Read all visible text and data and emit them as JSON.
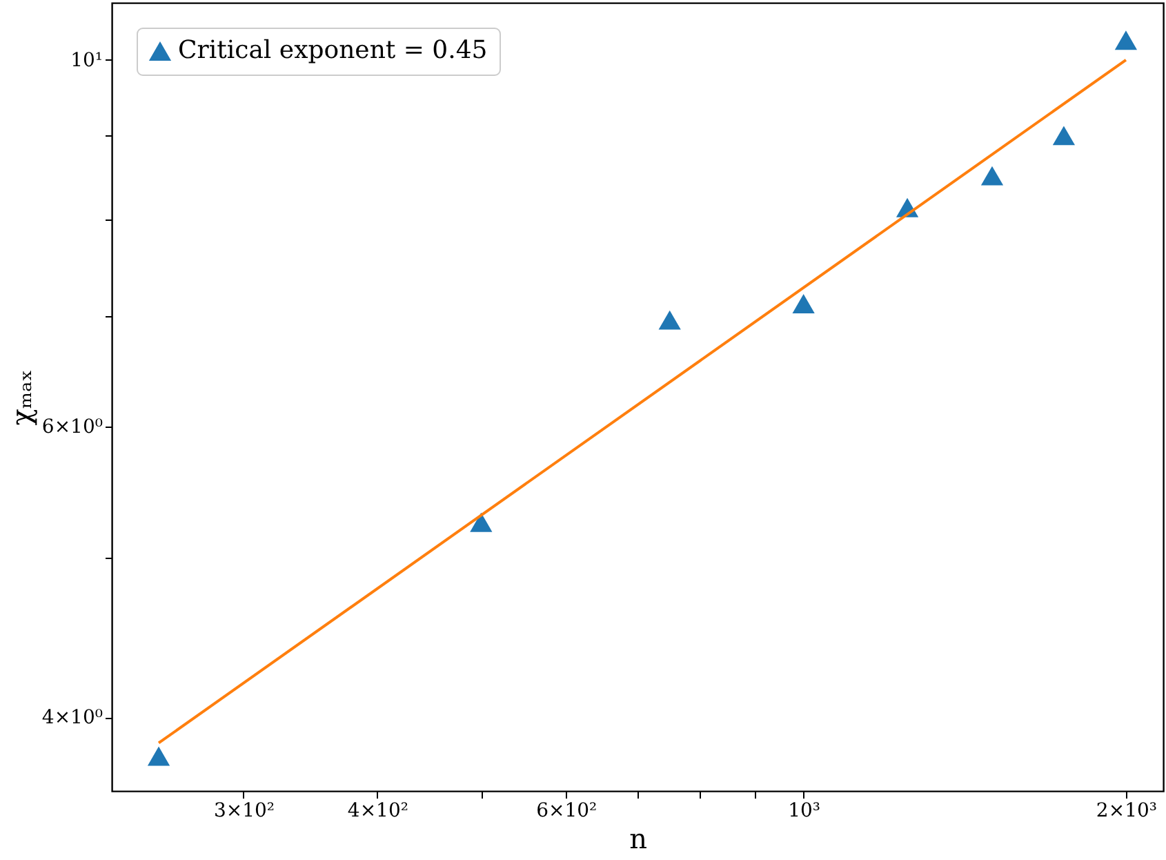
{
  "chart_data": {
    "type": "scatter",
    "xlabel": "n",
    "ylabel": "χₘₐₓ",
    "log": "xy",
    "grid": false,
    "legend": "top left",
    "xlim": [
      226,
      2167
    ],
    "ylim": [
      3.61,
      10.83
    ],
    "xticks": [
      {
        "value": 300,
        "label": "3×10²"
      },
      {
        "value": 400,
        "label": "4×10²"
      },
      {
        "value": 500,
        "label": null
      },
      {
        "value": 600,
        "label": "6×10²"
      },
      {
        "value": 700,
        "label": null
      },
      {
        "value": 800,
        "label": null
      },
      {
        "value": 900,
        "label": null
      },
      {
        "value": 1000,
        "label": "10³"
      },
      {
        "value": 2000,
        "label": "2×10³"
      }
    ],
    "yticks": [
      {
        "value": 4,
        "label": "4×10⁰"
      },
      {
        "value": 5,
        "label": null
      },
      {
        "value": 6,
        "label": "6×10⁰"
      },
      {
        "value": 7,
        "label": null
      },
      {
        "value": 8,
        "label": null
      },
      {
        "value": 9,
        "label": null
      },
      {
        "value": 10,
        "label": "10¹"
      }
    ],
    "series": [
      {
        "name": "Critical exponent = 0.45",
        "marker": "triangle",
        "color": "#1f77b4",
        "x": [
          250,
          500,
          750,
          1000,
          1250,
          1500,
          1750,
          2000
        ],
        "values": [
          3.79,
          5.25,
          6.96,
          7.12,
          8.14,
          8.51,
          9.0,
          10.28
        ]
      },
      {
        "type": "line",
        "line_style": "solid",
        "color": "#ff7f0e",
        "x": [
          250,
          2000
        ],
        "values": [
          3.86,
          10.0
        ]
      }
    ]
  }
}
